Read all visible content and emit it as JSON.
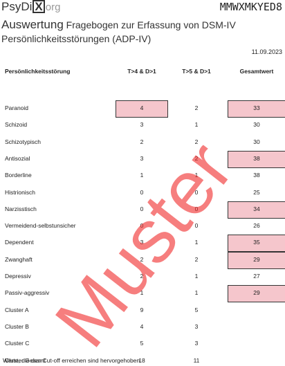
{
  "header": {
    "logo": {
      "name": "PsyDi",
      "mark": "X",
      "suffix": "org"
    },
    "code": "MMWXMKYED8",
    "title_main": "Auswertung",
    "title_rest": "Fragebogen zur Erfassung von DSM-IV Persönlichkeitsstörungen (ADP-IV)",
    "date": "11.09.2023"
  },
  "table": {
    "columns": [
      "Persönlichkeitsstörung",
      "T>4 & D>1",
      "T>5 & D>1",
      "Gesamtwert"
    ],
    "highlight_color": "#f5c6cc",
    "rows": [
      {
        "name": "Paranoid",
        "t4": 4,
        "t5": 2,
        "total": 33,
        "highlight": [
          "t4",
          "total"
        ]
      },
      {
        "name": "Schizoid",
        "t4": 3,
        "t5": 1,
        "total": 30,
        "highlight": []
      },
      {
        "name": "Schizotypisch",
        "t4": 2,
        "t5": 2,
        "total": 30,
        "highlight": []
      },
      {
        "name": "Antisozial",
        "t4": 3,
        "t5": 2,
        "total": 38,
        "highlight": [
          "total"
        ]
      },
      {
        "name": "Borderline",
        "t4": 1,
        "t5": 1,
        "total": 38,
        "highlight": []
      },
      {
        "name": "Histrionisch",
        "t4": 0,
        "t5": 0,
        "total": 25,
        "highlight": []
      },
      {
        "name": "Narzisstisch",
        "t4": 0,
        "t5": 0,
        "total": 34,
        "highlight": [
          "total"
        ]
      },
      {
        "name": "Vermeidend-selbstunsicher",
        "t4": 0,
        "t5": 0,
        "total": 26,
        "highlight": []
      },
      {
        "name": "Dependent",
        "t4": 3,
        "t5": 1,
        "total": 35,
        "highlight": [
          "total"
        ]
      },
      {
        "name": "Zwanghaft",
        "t4": 2,
        "t5": 2,
        "total": 29,
        "highlight": [
          "total"
        ]
      },
      {
        "name": "Depressiv",
        "t4": 2,
        "t5": 1,
        "total": 27,
        "highlight": []
      },
      {
        "name": "Passiv-aggressiv",
        "t4": 1,
        "t5": 1,
        "total": 29,
        "highlight": [
          "total"
        ]
      },
      {
        "name": "Cluster A",
        "t4": 9,
        "t5": 5,
        "total": null,
        "highlight": []
      },
      {
        "name": "Cluster B",
        "t4": 4,
        "t5": 3,
        "total": null,
        "highlight": []
      },
      {
        "name": "Cluster C",
        "t4": 5,
        "t5": 3,
        "total": null,
        "highlight": []
      },
      {
        "name": "Cluster Gesamt",
        "t4": 18,
        "t5": 11,
        "total": null,
        "highlight": []
      }
    ]
  },
  "note": "Werte, die den Cut-off erreichen sind hervorgehoben.",
  "watermark": "Muster"
}
